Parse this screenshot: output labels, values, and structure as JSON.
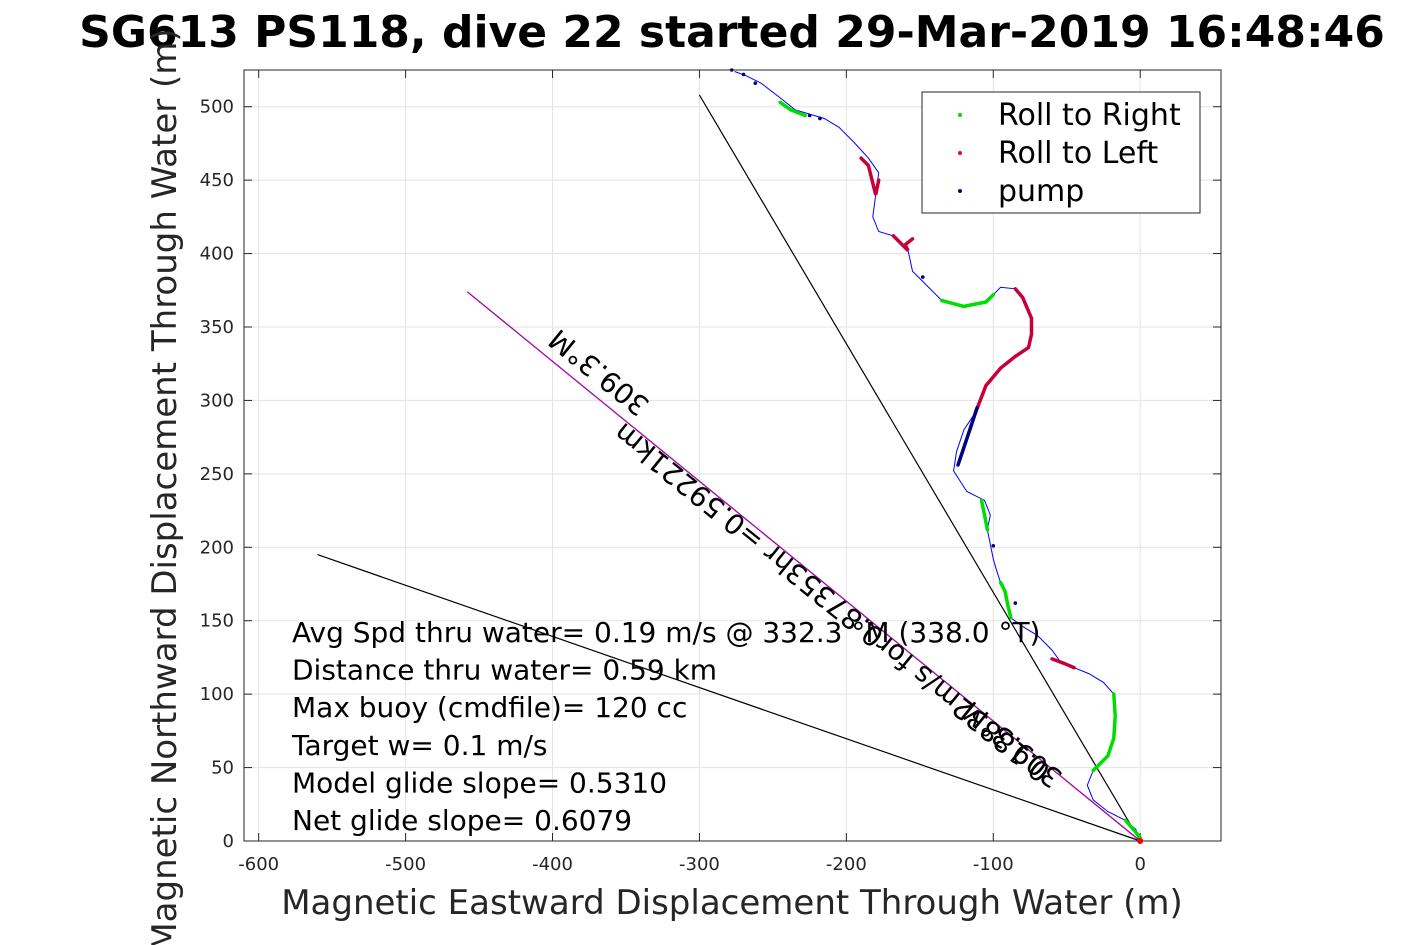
{
  "chart_data": {
    "type": "line",
    "title": "SG613 PS118, dive 22 started 29-Mar-2019 16:48:46",
    "xlabel": "Magnetic Eastward Displacement Through Water (m)",
    "ylabel": "Magnetic Northward Displacement Through Water (m)",
    "xlim": [
      -610,
      55
    ],
    "ylim": [
      0,
      525
    ],
    "xticks": [
      -600,
      -500,
      -400,
      -300,
      -200,
      -100,
      0
    ],
    "yticks": [
      0,
      50,
      100,
      150,
      200,
      250,
      300,
      350,
      400,
      450,
      500
    ],
    "grid": true,
    "legend_position": "top-right",
    "legend": [
      {
        "name": "Roll to Right",
        "color": "#00dd00"
      },
      {
        "name": "Roll to Left",
        "color": "#ff0000"
      },
      {
        "name": "pump",
        "color": "#000080"
      }
    ],
    "track_color": "#0000ff",
    "track": [
      [
        0,
        0
      ],
      [
        -3,
        8
      ],
      [
        -10,
        14
      ],
      [
        -22,
        20
      ],
      [
        -32,
        28
      ],
      [
        -36,
        38
      ],
      [
        -32,
        48
      ],
      [
        -22,
        58
      ],
      [
        -18,
        70
      ],
      [
        -17,
        85
      ],
      [
        -18,
        100
      ],
      [
        -25,
        108
      ],
      [
        -35,
        114
      ],
      [
        -45,
        118
      ],
      [
        -55,
        123
      ],
      [
        -60,
        130
      ],
      [
        -70,
        140
      ],
      [
        -80,
        146
      ],
      [
        -88,
        152
      ],
      [
        -90,
        160
      ],
      [
        -92,
        170
      ],
      [
        -95,
        176
      ],
      [
        -98,
        185
      ],
      [
        -100,
        192
      ],
      [
        -102,
        202
      ],
      [
        -104,
        212
      ],
      [
        -102,
        222
      ],
      [
        -106,
        232
      ],
      [
        -118,
        238
      ],
      [
        -127,
        252
      ],
      [
        -125,
        265
      ],
      [
        -120,
        280
      ],
      [
        -112,
        292
      ],
      [
        -105,
        310
      ],
      [
        -95,
        322
      ],
      [
        -85,
        330
      ],
      [
        -76,
        336
      ],
      [
        -74,
        345
      ],
      [
        -74,
        356
      ],
      [
        -80,
        370
      ],
      [
        -85,
        376
      ],
      [
        -95,
        377
      ],
      [
        -100,
        372
      ],
      [
        -105,
        367
      ],
      [
        -120,
        364
      ],
      [
        -135,
        368
      ],
      [
        -145,
        378
      ],
      [
        -155,
        388
      ],
      [
        -158,
        402
      ],
      [
        -168,
        412
      ],
      [
        -178,
        415
      ],
      [
        -182,
        425
      ],
      [
        -180,
        440
      ],
      [
        -178,
        455
      ],
      [
        -185,
        465
      ],
      [
        -195,
        476
      ],
      [
        -205,
        486
      ],
      [
        -215,
        492
      ],
      [
        -225,
        495
      ],
      [
        -235,
        498
      ],
      [
        -245,
        506
      ],
      [
        -258,
        516
      ],
      [
        -268,
        521
      ],
      [
        -276,
        524
      ]
    ],
    "roll_right_segments": [
      [
        [
          -10,
          14
        ],
        [
          -3,
          6
        ],
        [
          0,
          2
        ]
      ],
      [
        [
          -32,
          48
        ],
        [
          -22,
          58
        ],
        [
          -18,
          70
        ],
        [
          -17,
          85
        ],
        [
          -18,
          100
        ]
      ],
      [
        [
          -88,
          152
        ],
        [
          -90,
          160
        ],
        [
          -92,
          170
        ],
        [
          -95,
          176
        ]
      ],
      [
        [
          -104,
          212
        ],
        [
          -106,
          222
        ],
        [
          -108,
          232
        ]
      ],
      [
        [
          -100,
          372
        ],
        [
          -105,
          367
        ],
        [
          -120,
          364
        ],
        [
          -135,
          368
        ]
      ],
      [
        [
          -228,
          494
        ],
        [
          -238,
          498
        ],
        [
          -245,
          503
        ]
      ]
    ],
    "roll_left_segments": [
      [
        [
          -45,
          118
        ],
        [
          -52,
          121
        ],
        [
          -60,
          124
        ]
      ],
      [
        [
          -112,
          292
        ],
        [
          -105,
          310
        ],
        [
          -95,
          322
        ],
        [
          -85,
          330
        ],
        [
          -76,
          336
        ],
        [
          -74,
          345
        ],
        [
          -74,
          356
        ],
        [
          -80,
          370
        ],
        [
          -85,
          376
        ]
      ],
      [
        [
          -155,
          410
        ],
        [
          -160,
          406
        ],
        [
          -158,
          402
        ],
        [
          -168,
          412
        ]
      ],
      [
        [
          -178,
          450
        ],
        [
          -180,
          440
        ],
        [
          -185,
          460
        ],
        [
          -190,
          465
        ]
      ]
    ],
    "pump_segments": [
      [
        [
          -111,
          295
        ],
        [
          -116,
          280
        ],
        [
          -120,
          268
        ],
        [
          -124,
          256
        ]
      ]
    ],
    "pump_points": [
      [
        -148,
        384
      ],
      [
        -218,
        492
      ],
      [
        -225,
        494
      ],
      [
        -262,
        516
      ],
      [
        -270,
        522
      ],
      [
        -278,
        525
      ],
      [
        -100,
        201
      ],
      [
        -85,
        162
      ]
    ],
    "reference_lines": [
      {
        "label": "",
        "points": [
          [
            0,
            0
          ],
          [
            -300,
            508
          ]
        ]
      },
      {
        "label": "",
        "points": [
          [
            0,
            0
          ],
          [
            -560,
            195
          ]
        ]
      },
      {
        "label": "",
        "points": [
          [
            0,
            0
          ],
          [
            -458,
            374
          ]
        ],
        "color": "#cc00cc"
      }
    ],
    "rotated_labels": [
      "309.3°M",
      "0.18832m/s for0.87353hr =0.59221km",
      "309.3°M"
    ],
    "annotations": [
      "Avg Spd thru water=  0.19 m/s @ 332.3 °M (338.0 °T)",
      "Distance thru water=  0.59 km",
      "Max buoy (cmdfile)= 120 cc",
      "Target w= 0.1 m/s",
      "Model glide slope= 0.5310",
      "Net glide slope= 0.6079"
    ]
  }
}
